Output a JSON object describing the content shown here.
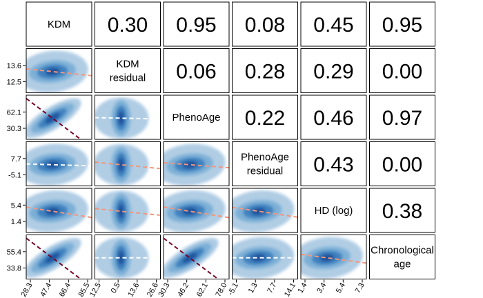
{
  "chart_data": {
    "type": "scatter-matrix",
    "variables": [
      "KDM",
      "KDM residual",
      "PhenoAge",
      "PhenoAge residual",
      "HD (log)",
      "Chronological age"
    ],
    "diagonal_labels": [
      [
        "KDM"
      ],
      [
        "KDM",
        "residual"
      ],
      [
        "PhenoAge"
      ],
      [
        "PhenoAge",
        "residual"
      ],
      [
        "HD (log)"
      ],
      [
        "Chronological",
        "age"
      ]
    ],
    "correlations": [
      {
        "row": 0,
        "col": 1,
        "value": "0.30"
      },
      {
        "row": 0,
        "col": 2,
        "value": "0.95"
      },
      {
        "row": 0,
        "col": 3,
        "value": "0.08"
      },
      {
        "row": 0,
        "col": 4,
        "value": "0.45"
      },
      {
        "row": 0,
        "col": 5,
        "value": "0.95"
      },
      {
        "row": 1,
        "col": 2,
        "value": "0.06"
      },
      {
        "row": 1,
        "col": 3,
        "value": "0.28"
      },
      {
        "row": 1,
        "col": 4,
        "value": "0.29"
      },
      {
        "row": 1,
        "col": 5,
        "value": "0.00"
      },
      {
        "row": 2,
        "col": 3,
        "value": "0.22"
      },
      {
        "row": 2,
        "col": 4,
        "value": "0.46"
      },
      {
        "row": 2,
        "col": 5,
        "value": "0.97"
      },
      {
        "row": 3,
        "col": 4,
        "value": "0.43"
      },
      {
        "row": 3,
        "col": 5,
        "value": "0.00"
      },
      {
        "row": 4,
        "col": 5,
        "value": "0.38"
      }
    ],
    "y_tick_labels": [
      null,
      [
        "13.6",
        "12.5"
      ],
      [
        "62.1",
        "30.3"
      ],
      [
        "7.7",
        "-5.1"
      ],
      [
        "5.4",
        "1.4"
      ],
      [
        "55.4",
        "33.8"
      ]
    ],
    "x_tick_labels": [
      [
        "28.3",
        "47.4",
        "66.4",
        "85.5"
      ],
      [
        "12.5",
        "0.5",
        "13.6",
        "26.6"
      ],
      [
        "30.3",
        "46.2",
        "62.1",
        "78.0"
      ],
      [
        "-5.1",
        "1.3",
        "7.7",
        "14.1"
      ],
      [
        "1.4",
        "3.4",
        "5.4",
        "7.3"
      ]
    ],
    "color_scale": [
      "#f1f7fc",
      "#fde9e0",
      "#fbb39c",
      "#f67c63",
      "#d73b32",
      "#780023"
    ],
    "density_colors": [
      "#a8c8e2",
      "#7aaed6",
      "#3d7fbd",
      "#1c4f9a",
      "#0b2e6e"
    ]
  }
}
